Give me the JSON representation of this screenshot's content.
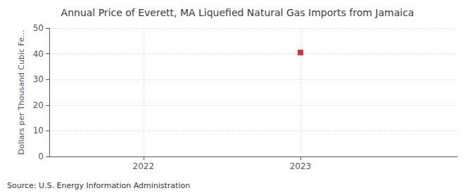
{
  "chart_data": {
    "type": "scatter",
    "title": "Annual Price of Everett, MA Liquefied Natural Gas Imports from Jamaica",
    "y_label": "Dollars per Thousand Cubic Fe...",
    "annotations": [
      "Source: U.S. Energy Information Administration"
    ],
    "x": [
      2023
    ],
    "values": [
      40.5
    ],
    "color": "#cc0000",
    "marker": "square",
    "xlim": [
      2021.4,
      2024.0
    ],
    "xticks": [
      2022,
      2023
    ],
    "ylim": [
      0,
      50
    ],
    "yticks": [
      0,
      10,
      20,
      30,
      40,
      50
    ],
    "grid": true
  }
}
